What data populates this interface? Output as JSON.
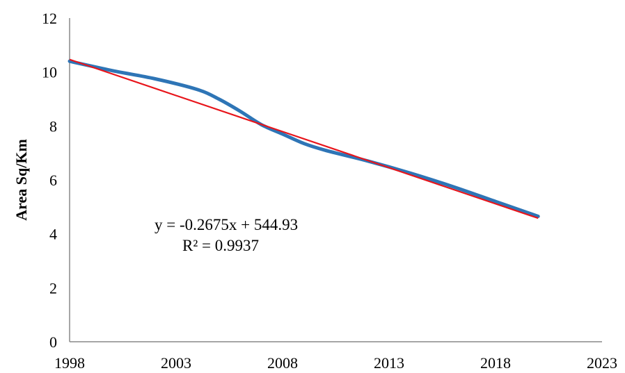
{
  "chart_data": {
    "type": "line",
    "title": "",
    "xlabel": "",
    "ylabel": "Area Sq/Km",
    "xlim": [
      1998,
      2023
    ],
    "ylim": [
      0,
      12
    ],
    "xticks": [
      1998,
      2003,
      2008,
      2013,
      2018,
      2023
    ],
    "yticks": [
      0,
      2,
      4,
      6,
      8,
      10,
      12
    ],
    "grid": false,
    "legend": "none",
    "series": [
      {
        "color": "#2e75b6",
        "x": [
          1998,
          2000,
          2002,
          2004,
          2005,
          2006,
          2007,
          2008,
          2009,
          2010,
          2012,
          2014,
          2016,
          2018,
          2020
        ],
        "y": [
          10.4,
          10.05,
          9.75,
          9.35,
          9.0,
          8.55,
          8.05,
          7.7,
          7.35,
          7.1,
          6.7,
          6.25,
          5.75,
          5.2,
          4.65
        ]
      }
    ],
    "trendline": {
      "color": "#e8151b",
      "slope": -0.2675,
      "intercept": 544.93,
      "x_range": [
        1998,
        2020
      ]
    },
    "annotations": {
      "equation": "y = -0.2675x + 544.93",
      "r_squared": "R² = 0.9937"
    }
  }
}
